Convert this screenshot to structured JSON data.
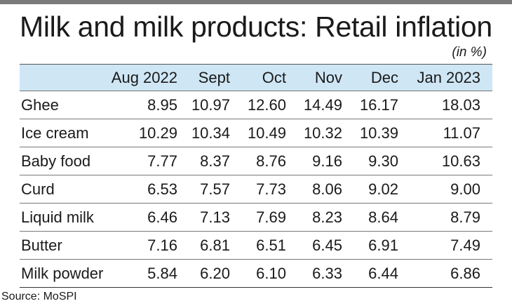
{
  "title": "Milk and milk products: Retail inflation",
  "unit": "(in %)",
  "source": "Source: MoSPI",
  "chart_data": {
    "type": "table",
    "columns": [
      "Aug 2022",
      "Sept",
      "Oct",
      "Nov",
      "Dec",
      "Jan 2023"
    ],
    "rows": [
      {
        "label": "Ghee",
        "values": [
          "8.95",
          "10.97",
          "12.60",
          "14.49",
          "16.17",
          "18.03"
        ]
      },
      {
        "label": "Ice cream",
        "values": [
          "10.29",
          "10.34",
          "10.49",
          "10.32",
          "10.39",
          "11.07"
        ]
      },
      {
        "label": "Baby food",
        "values": [
          "7.77",
          "8.37",
          "8.76",
          "9.16",
          "9.30",
          "10.63"
        ]
      },
      {
        "label": "Curd",
        "values": [
          "6.53",
          "7.57",
          "7.73",
          "8.06",
          "9.02",
          "9.00"
        ]
      },
      {
        "label": "Liquid milk",
        "values": [
          "6.46",
          "7.13",
          "7.69",
          "8.23",
          "8.64",
          "8.79"
        ]
      },
      {
        "label": "Butter",
        "values": [
          "7.16",
          "6.81",
          "6.51",
          "6.45",
          "6.91",
          "7.49"
        ]
      },
      {
        "label": "Milk powder",
        "values": [
          "5.84",
          "6.20",
          "6.10",
          "6.33",
          "6.44",
          "6.86"
        ]
      }
    ]
  }
}
